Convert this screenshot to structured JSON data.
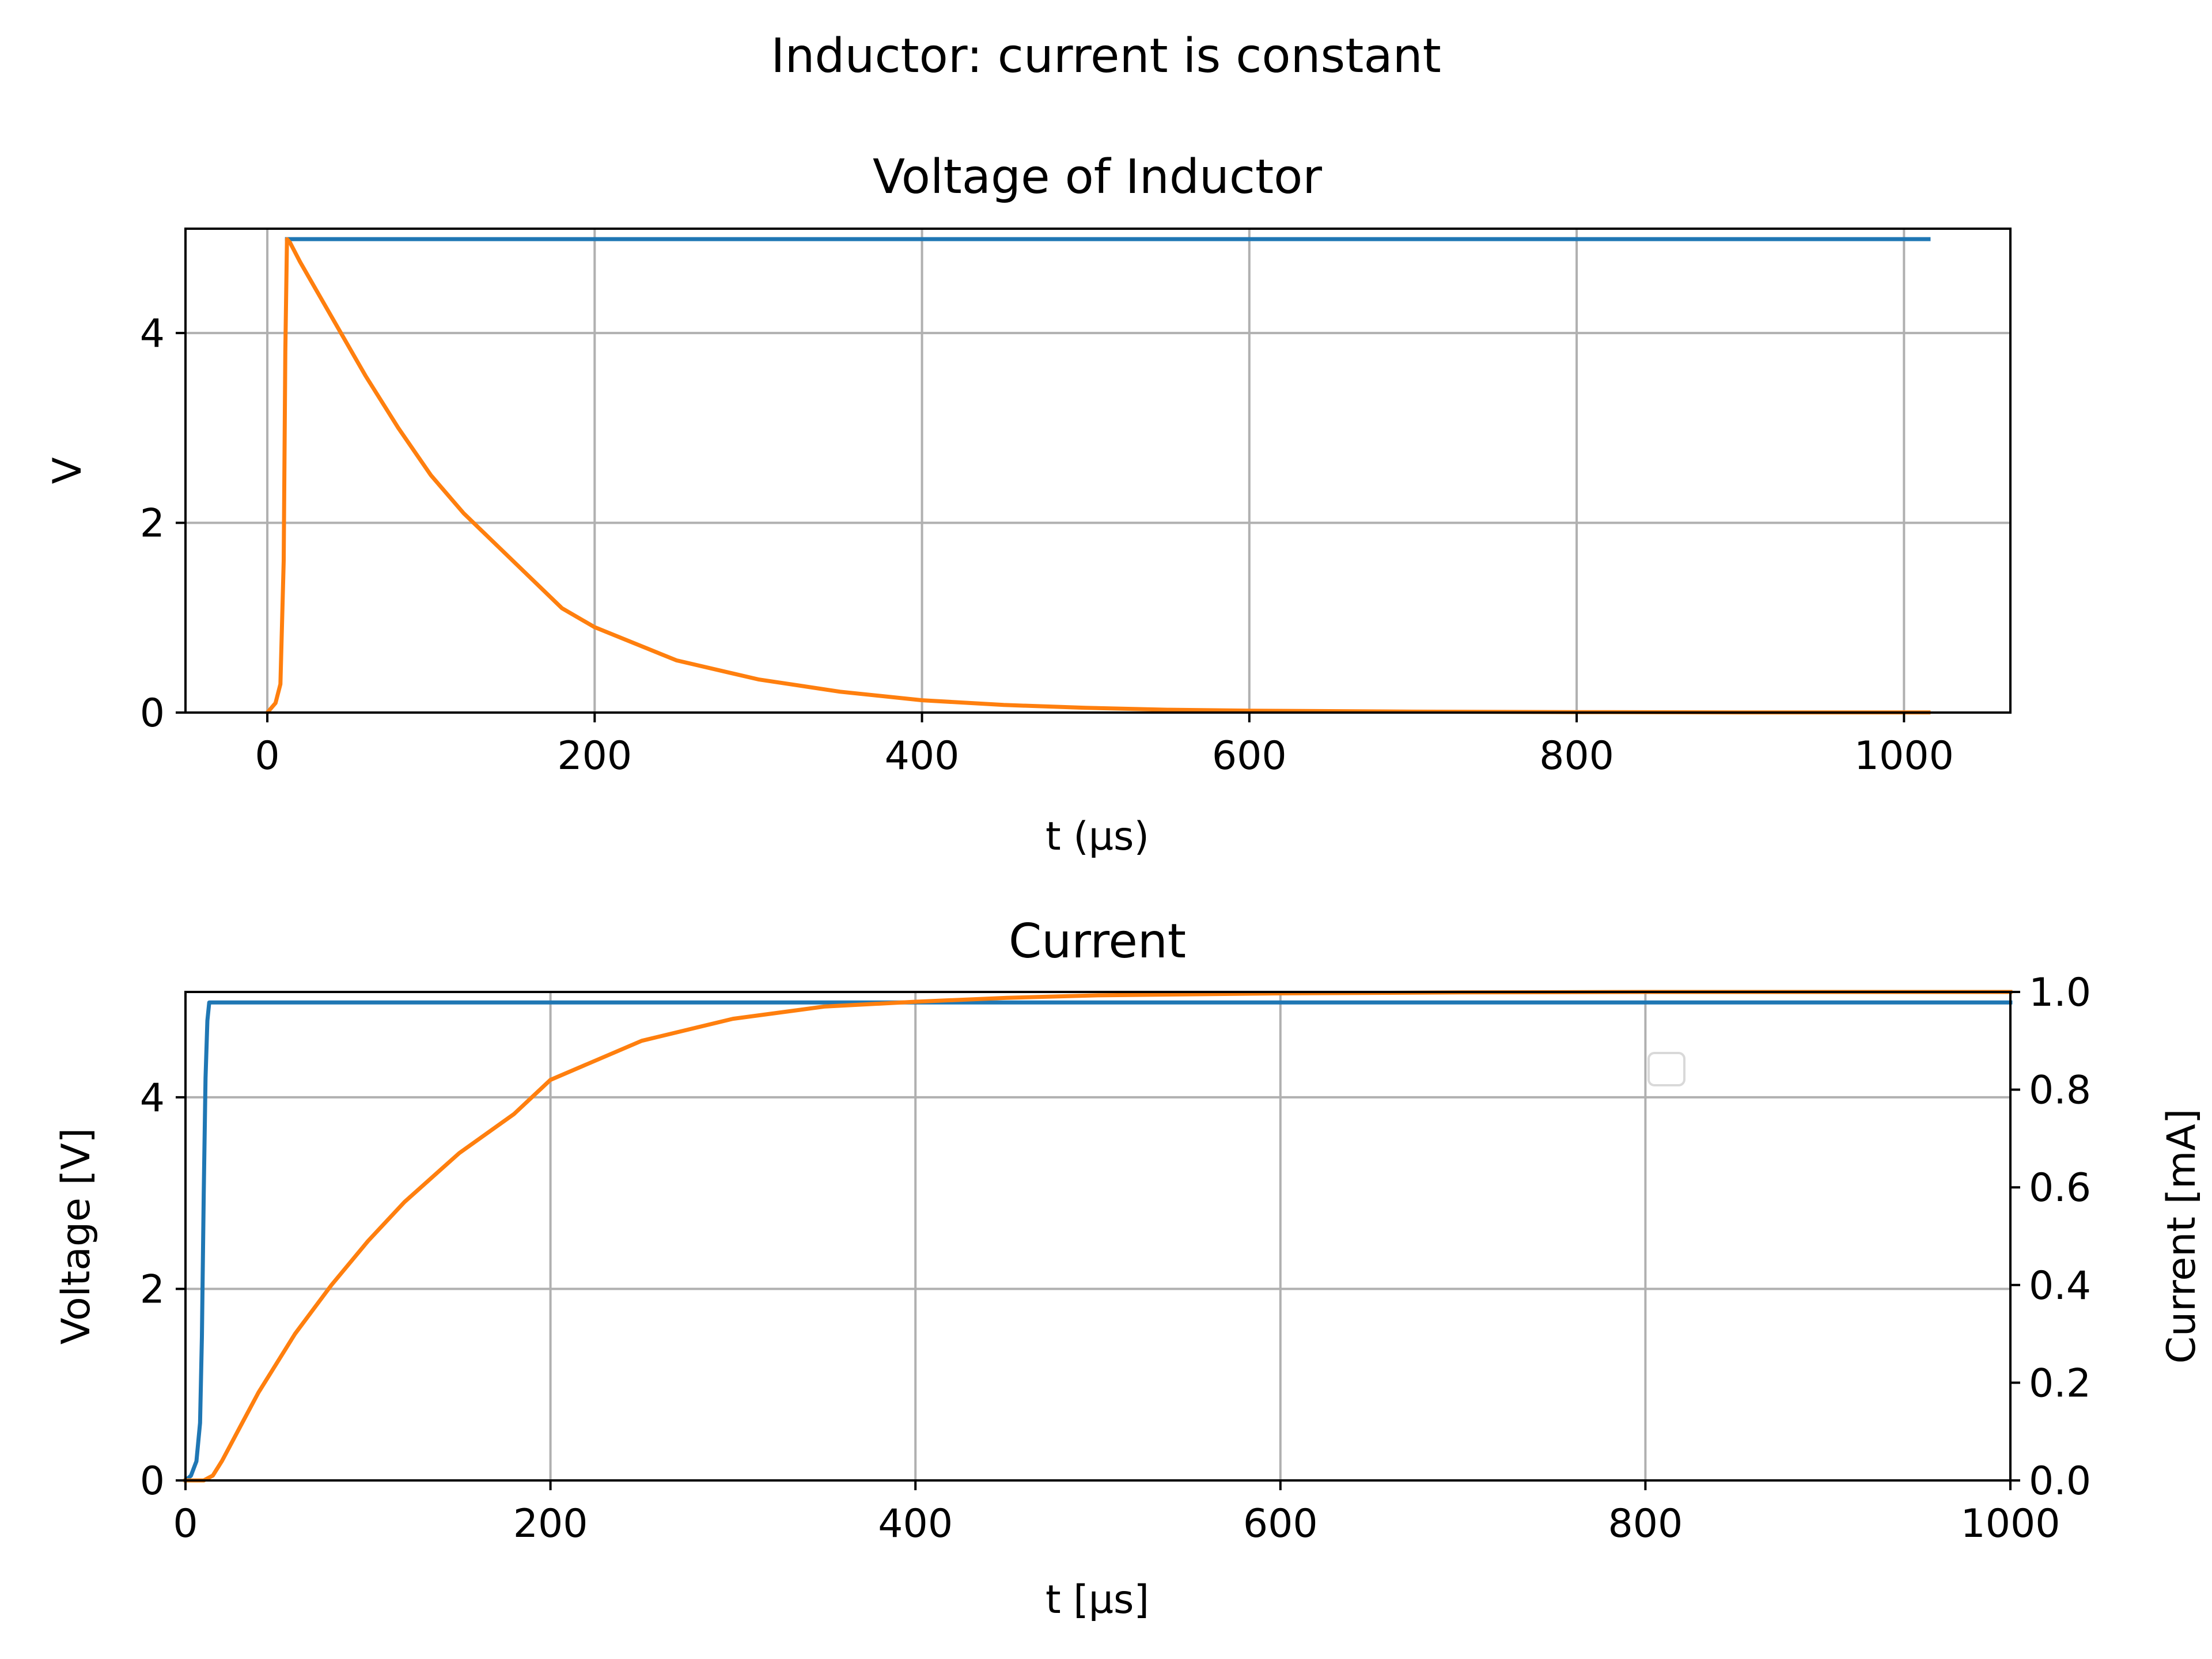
{
  "suptitle": "Inductor: current is constant",
  "chart_data": [
    {
      "type": "line",
      "title": "Voltage of Inductor",
      "xlabel": "t (µs)",
      "ylabel": "V",
      "xlim": [
        -50,
        1065
      ],
      "ylim": [
        0,
        5.1
      ],
      "xticks": [
        0,
        200,
        400,
        600,
        800,
        1000
      ],
      "xtick_labels": [
        "0",
        "200",
        "400",
        "600",
        "800",
        "1000"
      ],
      "yticks": [
        0,
        2,
        4
      ],
      "ytick_labels": [
        "0",
        "2",
        "4"
      ],
      "grid": true,
      "colors": {
        "series_1": "#1f77b4",
        "series_2": "#ff7f0e",
        "grid": "#b0b0b0"
      },
      "series": [
        {
          "color": "#1f77b4",
          "x": [
            12,
            1015
          ],
          "y": [
            4.99,
            4.99
          ]
        },
        {
          "color": "#ff7f0e",
          "x": [
            0,
            5,
            8,
            10,
            11,
            12,
            14,
            20,
            30,
            40,
            60,
            80,
            100,
            120,
            150,
            180,
            200,
            250,
            300,
            350,
            400,
            450,
            500,
            550,
            600,
            700,
            800,
            900,
            1015
          ],
          "y": [
            0,
            0.1,
            0.3,
            1.6,
            3.8,
            4.99,
            4.95,
            4.75,
            4.45,
            4.15,
            3.55,
            3.0,
            2.5,
            2.1,
            1.6,
            1.1,
            0.9,
            0.55,
            0.35,
            0.22,
            0.13,
            0.08,
            0.05,
            0.03,
            0.02,
            0.01,
            0.005,
            0.002,
            0.001
          ]
        }
      ]
    },
    {
      "type": "line",
      "title": "Current",
      "xlabel": "t [µs]",
      "ylabel": "Voltage [V]",
      "ylabel_right": "Current [mA]",
      "xlim": [
        0,
        1000
      ],
      "ylim": [
        0,
        5.1
      ],
      "ylim_right": [
        0,
        1.0
      ],
      "xticks": [
        0,
        200,
        400,
        600,
        800,
        1000
      ],
      "xtick_labels": [
        "0",
        "200",
        "400",
        "600",
        "800",
        "1000"
      ],
      "yticks": [
        0,
        2,
        4
      ],
      "ytick_labels": [
        "0",
        "2",
        "4"
      ],
      "yticks_right": [
        0,
        0.2,
        0.4,
        0.6,
        0.8,
        1.0
      ],
      "ytick_labels_right": [
        "0.0",
        "0.2",
        "0.4",
        "0.6",
        "0.8",
        "1.0"
      ],
      "grid": true,
      "legend": "empty legend box near upper right",
      "colors": {
        "series_1": "#1f77b4",
        "series_2": "#ff7f0e",
        "grid": "#b0b0b0"
      },
      "series": [
        {
          "color": "#1f77b4",
          "axis": "left",
          "x": [
            0,
            3,
            6,
            8,
            9,
            10,
            11,
            12,
            13,
            1000
          ],
          "y": [
            0,
            0.05,
            0.2,
            0.6,
            1.5,
            3.0,
            4.2,
            4.8,
            4.99,
            4.99
          ]
        },
        {
          "color": "#ff7f0e",
          "axis": "right",
          "x": [
            0,
            10,
            15,
            20,
            30,
            40,
            60,
            80,
            100,
            120,
            150,
            180,
            200,
            250,
            300,
            350,
            400,
            450,
            500,
            600,
            700,
            800,
            900,
            1000
          ],
          "y": [
            0,
            0,
            0.01,
            0.04,
            0.11,
            0.18,
            0.3,
            0.4,
            0.49,
            0.57,
            0.67,
            0.75,
            0.82,
            0.9,
            0.945,
            0.97,
            0.98,
            0.988,
            0.993,
            0.997,
            0.999,
            1.0,
            1.0,
            1.0
          ]
        }
      ]
    }
  ]
}
